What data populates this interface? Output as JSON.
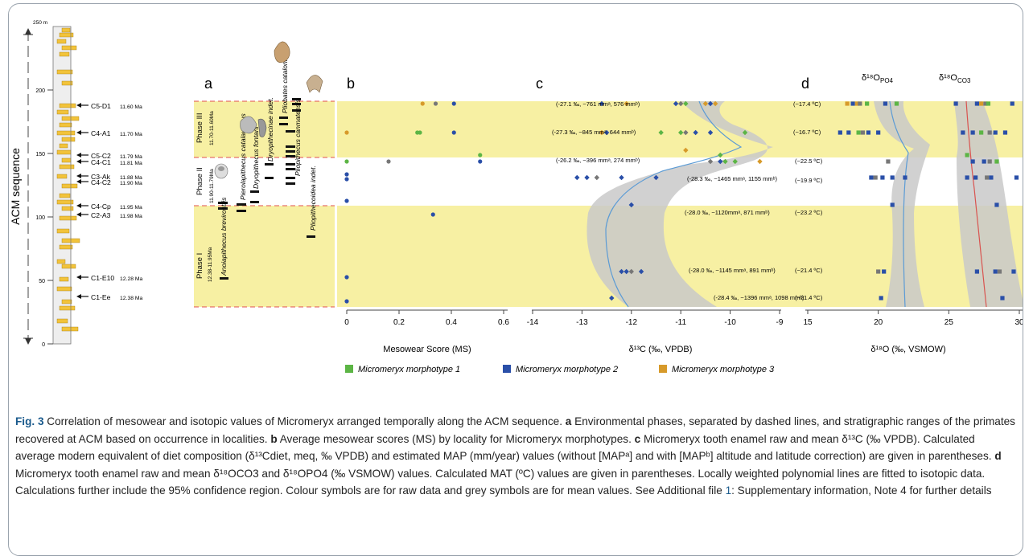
{
  "strat": {
    "meter_label": "250 m",
    "ticks": [
      "0",
      "50",
      "100",
      "150",
      "200"
    ],
    "axis_title": "ACM sequence",
    "localities": [
      {
        "name": "C5-D1",
        "age": "11.60 Ma"
      },
      {
        "name": "C4-A1",
        "age": "11.70 Ma"
      },
      {
        "name": "C5-C2",
        "age": "11.79 Ma"
      },
      {
        "name": "C4-C1",
        "age": "11.81 Ma"
      },
      {
        "name": "C3-Ak",
        "age": "11.88 Ma"
      },
      {
        "name": "C4-C2",
        "age": "11.90 Ma"
      },
      {
        "name": "C4-Cp",
        "age": "11.95 Ma"
      },
      {
        "name": "C2-A3",
        "age": "11.98 Ma"
      },
      {
        "name": "C1-E10",
        "age": "12.28 Ma"
      },
      {
        "name": "C1-Ee",
        "age": "12.38 Ma"
      }
    ]
  },
  "panel_a": {
    "letter": "a",
    "phases": [
      {
        "name": "Phase III",
        "range": "11.70-11.60Ma"
      },
      {
        "name": "Phase II",
        "range": "11.90-11.79Ma"
      },
      {
        "name": "Phase I",
        "range": "12.38-11.95Ma"
      }
    ],
    "taxa": [
      "Anoiapithecus brevirostris",
      "Pierolapithecus catalaunicus",
      "Dryopithecus fontani",
      "Dryopithecinae indet.",
      "Pliobates cataloniae",
      "Pliopithecus canmatensis",
      "Pliopithecoidea indet."
    ]
  },
  "panel_b": {
    "letter": "b",
    "xlabel": "Mesowear Score (MS)",
    "ticks": [
      "0",
      "0.2",
      "0.4",
      "0.6"
    ]
  },
  "panel_c": {
    "letter": "c",
    "xlabel": "δ¹³C (‰, VPDB)",
    "ticks": [
      "-14",
      "-13",
      "-12",
      "-11",
      "-10",
      "-9"
    ],
    "annotations": [
      "(-27.1 ‰, ~761 mmᵃ, 576 mmᵇ)",
      "(-27.3 ‰, ~845 mmᵃ, 644 mmᵇ)",
      "(-26.2 ‰, ~396 mmᵃ, 274 mmᵇ)",
      "(-28.3 ‰, ~1465 mmᵃ, 1155 mmᵇ)",
      "(-28.0 ‰, ~1120mmᵃ, 871 mmᵇ)",
      "(-28.0 ‰, ~1145 mmᵃ, 891 mmᵇ)",
      "(-28.4 ‰, ~1396 mmᵃ, 1098 mmᵇ)"
    ]
  },
  "panel_d": {
    "letter": "d",
    "xlabel": "δ¹⁸O (‰, VSMOW)",
    "ticks": [
      "15",
      "20",
      "25",
      "30"
    ],
    "title_po4": "δ¹⁸O",
    "title_po4_sub": "PO4",
    "title_co3": "δ¹⁸O",
    "title_co3_sub": "CO3",
    "mat": [
      "(~17.4 ºC)",
      "(~16.7 ºC)",
      "(~22.5 ºC)",
      "(~19.9 ºC)",
      "(~23.2 ºC)",
      "(~21.4 ºC)",
      "(~21.4 ºC)"
    ]
  },
  "legend": [
    {
      "label": "Micromeryx morphotype 1",
      "color": "#5cb545"
    },
    {
      "label": "Micromeryx morphotype 2",
      "color": "#2a4fa8"
    },
    {
      "label": "Micromeryx morphotype 3",
      "color": "#d79a2a"
    }
  ],
  "colors": {
    "band": "#f7f0a3",
    "gray": "#c9c9c9",
    "loess_c": "#5b9bd5",
    "loess_co3": "#d9534f"
  },
  "caption": {
    "fig_label": "Fig. 3",
    "intro": " Correlation of mesowear and isotopic values of Micromeryx arranged temporally along the ACM sequence. ",
    "a_letter": "a",
    "a_text": " Environmental phases, separated by dashed lines, and stratigraphic ranges of the primates recovered at ACM based on occurrence in localities. ",
    "b_letter": "b",
    "b_text": " Average mesowear scores (MS) by locality for Micromeryx morphotypes. ",
    "c_letter": "c",
    "c_text": " Micromeryx tooth enamel raw and mean δ¹³C (‰ VPDB). Calculated average modern equivalent of diet composition (δ¹³Cdiet, meq, ‰ VPDB) and estimated MAP (mm/year) values (without [MAPᵃ] and with [MAPᵇ] altitude and latitude correction) are given in parentheses. ",
    "d_letter": "d",
    "d_text": " Micromeryx tooth enamel raw and mean δ¹⁸OCO3 and δ¹⁸OPO4 (‰ VSMOW) values. Calculated MAT (ºC) values are given in parentheses. Locally weighted polynomial lines are fitted to isotopic data. Calculations further include the 95% confidence region. Colour symbols are for raw data and grey symbols are for mean values. See Additional file ",
    "file_link": "1",
    "tail": ": Supplementary information, Note 4 for further details"
  }
}
